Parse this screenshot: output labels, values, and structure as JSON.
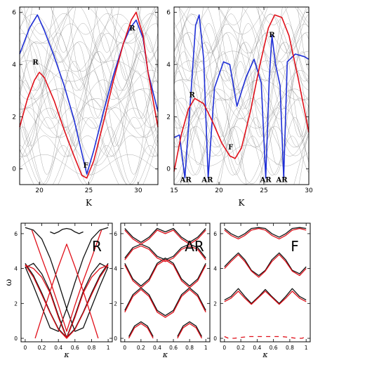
{
  "chart_data": [
    {
      "panel": "top-left",
      "type": "line",
      "xlabel": "K",
      "ylabel": "",
      "xlim": [
        18,
        32
      ],
      "ylim": [
        -0.6,
        6.2
      ],
      "xticks": [
        20,
        25,
        30
      ],
      "yticks": [
        0,
        2,
        4,
        6
      ],
      "background": "dense grey dispersion curves",
      "series": [
        {
          "color": "#1f2fd6",
          "x": [
            18,
            19,
            19.8,
            20.5,
            21.5,
            22.5,
            23.5,
            24.3,
            24.8,
            25.5,
            26.5,
            27.5,
            28.5,
            29.2,
            29.8,
            30.5,
            31,
            32
          ],
          "y": [
            4.4,
            5.4,
            5.9,
            5.3,
            4.3,
            3.2,
            1.9,
            0.6,
            -0.2,
            0.7,
            2.2,
            3.6,
            4.8,
            5.4,
            5.7,
            5.0,
            3.7,
            2.2
          ]
        },
        {
          "color": "#e0101a",
          "x": [
            18,
            18.8,
            19.5,
            20,
            20.5,
            21.5,
            22.5,
            23.5,
            24.3,
            24.8,
            25.5,
            26.5,
            27.5,
            28.5,
            29.3,
            29.8,
            30.5,
            31,
            32
          ],
          "y": [
            1.6,
            2.7,
            3.4,
            3.7,
            3.5,
            2.6,
            1.5,
            0.5,
            -0.25,
            -0.35,
            0.3,
            1.8,
            3.4,
            4.8,
            5.7,
            6.0,
            5.1,
            3.7,
            1.6
          ]
        }
      ],
      "labels": [
        {
          "text": "R",
          "x": 19.6,
          "y": 4.0
        },
        {
          "text": "R",
          "x": 29.4,
          "y": 5.3
        },
        {
          "text": "F",
          "x": 24.7,
          "y": 0.05
        }
      ]
    },
    {
      "panel": "top-right",
      "type": "line",
      "xlabel": "K",
      "ylabel": "",
      "xlim": [
        15,
        30
      ],
      "ylim": [
        -0.6,
        6.2
      ],
      "xticks": [
        15,
        20,
        25,
        30
      ],
      "yticks": [
        0,
        2,
        4,
        6
      ],
      "background": "dense grey dispersion curves",
      "series": [
        {
          "color": "#1f2fd6",
          "x": [
            15,
            15.6,
            16.2,
            16.9,
            17.4,
            17.8,
            18.3,
            18.8,
            19.5,
            20.5,
            21.2,
            22,
            23,
            23.9,
            24.7,
            25.2,
            25.6,
            25.9,
            26.3,
            26.8,
            27.2,
            27.6,
            28.5,
            29.5,
            30
          ],
          "y": [
            1.2,
            1.3,
            -0.35,
            3.0,
            5.5,
            5.9,
            4.2,
            -0.35,
            3.1,
            4.1,
            4.0,
            2.4,
            3.5,
            4.2,
            3.3,
            -0.35,
            3.5,
            5.1,
            4.0,
            3.2,
            -0.35,
            4.1,
            4.4,
            4.3,
            4.2
          ]
        },
        {
          "color": "#e0101a",
          "x": [
            15,
            15.8,
            16.6,
            17.3,
            18.3,
            19.3,
            20.3,
            21.2,
            21.8,
            22.5,
            23.5,
            24.5,
            25.5,
            26.2,
            27,
            27.8,
            28.8,
            30
          ],
          "y": [
            -0.1,
            1.3,
            2.3,
            2.7,
            2.5,
            1.8,
            1.0,
            0.5,
            0.4,
            0.8,
            2.2,
            3.9,
            5.4,
            5.9,
            5.8,
            5.1,
            3.5,
            1.4
          ]
        }
      ],
      "labels": [
        {
          "text": "R",
          "x": 17.0,
          "y": 2.75
        },
        {
          "text": "R",
          "x": 25.9,
          "y": 5.05
        },
        {
          "text": "F",
          "x": 21.3,
          "y": 0.75
        },
        {
          "text": "AR",
          "x": 16.3,
          "y": -0.5
        },
        {
          "text": "AR",
          "x": 18.7,
          "y": -0.5
        },
        {
          "text": "AR",
          "x": 25.2,
          "y": -0.5
        },
        {
          "text": "AR",
          "x": 27.0,
          "y": -0.5
        }
      ]
    },
    {
      "panel": "bottom-left",
      "type": "line",
      "xlabel": "κ",
      "ylabel": "ω",
      "xlim": [
        -0.05,
        1.05
      ],
      "ylim": [
        -0.2,
        6.6
      ],
      "xticks": [
        0,
        0.2,
        0.4,
        0.6,
        0.8,
        1
      ],
      "xtick_labels": [
        "0",
        "0.2",
        "0.4",
        "0.6",
        "0.8",
        "1"
      ],
      "yticks": [
        0,
        2,
        4,
        6
      ],
      "title": "R",
      "series": [
        {
          "color": "#111111",
          "x": [
            0,
            0.1,
            0.2,
            0.3,
            0.4,
            0.5,
            0.6,
            0.7,
            0.8,
            0.9,
            1
          ],
          "y": [
            4.3,
            3.6,
            2.6,
            1.5,
            0.55,
            0.05,
            0.55,
            1.5,
            2.6,
            3.6,
            4.3
          ]
        },
        {
          "color": "#111111",
          "x": [
            0,
            0.1,
            0.2,
            0.3,
            0.4,
            0.5,
            0.6,
            0.7,
            0.8,
            0.9,
            1
          ],
          "y": [
            4.05,
            4.3,
            3.7,
            2.7,
            1.3,
            0.05,
            1.3,
            2.7,
            3.7,
            4.3,
            4.05
          ]
        },
        {
          "color": "#111111",
          "x": [
            0,
            0.1,
            0.2,
            0.3,
            0.4,
            0.5,
            0.6,
            0.7,
            0.8,
            0.9,
            1
          ],
          "y": [
            4.1,
            3.0,
            1.8,
            0.6,
            0.4,
            1.7,
            3.2,
            4.6,
            5.7,
            6.2,
            6.35
          ]
        },
        {
          "color": "#111111",
          "x": [
            0,
            0.1,
            0.2,
            0.3,
            0.4,
            0.5,
            0.6,
            0.7,
            0.8,
            0.9,
            1
          ],
          "y": [
            6.35,
            6.2,
            5.7,
            4.6,
            3.2,
            1.7,
            0.4,
            0.6,
            1.8,
            3.0,
            4.1
          ]
        },
        {
          "color": "#111111",
          "x": [
            0.3,
            0.35,
            0.4,
            0.45,
            0.5,
            0.55,
            0.6,
            0.65,
            0.7
          ],
          "y": [
            6.1,
            6.0,
            6.1,
            6.25,
            6.3,
            6.25,
            6.1,
            6.0,
            6.1
          ]
        },
        {
          "color": "#e0101a",
          "x": [
            0,
            0.1,
            0.2,
            0.3,
            0.4,
            0.5,
            0.6,
            0.7,
            0.8,
            0.9,
            1
          ],
          "y": [
            4.2,
            3.5,
            2.5,
            1.45,
            0.5,
            0.0,
            0.5,
            1.45,
            2.5,
            3.5,
            4.2
          ]
        },
        {
          "color": "#e0101a",
          "x": [
            0,
            0.1,
            0.2,
            0.3,
            0.4,
            0.5,
            0.6,
            0.7,
            0.8,
            0.9,
            1
          ],
          "y": [
            4.2,
            4.0,
            3.5,
            2.6,
            1.2,
            0.0,
            1.2,
            2.6,
            3.5,
            4.0,
            4.2
          ]
        },
        {
          "color": "#e0101a",
          "x": [
            0.12,
            0.2,
            0.3,
            0.4,
            0.5,
            0.6,
            0.7,
            0.8,
            0.88
          ],
          "y": [
            0.0,
            1.2,
            2.7,
            4.1,
            5.4,
            4.1,
            2.7,
            1.2,
            0.0
          ]
        },
        {
          "color": "#e0101a",
          "x": [
            0.08,
            0.2,
            0.3,
            0.4,
            0.5,
            0.6,
            0.7,
            0.8,
            0.92
          ],
          "y": [
            6.2,
            4.6,
            3.3,
            1.9,
            0.4,
            1.9,
            3.3,
            4.6,
            6.2
          ]
        }
      ]
    },
    {
      "panel": "bottom-middle",
      "type": "line",
      "xlabel": "κ",
      "ylabel": "",
      "xlim": [
        -0.05,
        1.05
      ],
      "ylim": [
        -0.2,
        6.6
      ],
      "xticks": [
        0,
        0.2,
        0.4,
        0.6,
        0.8,
        1
      ],
      "xtick_labels": [
        "0",
        "0.2",
        "0.4",
        "0.6",
        "0.8",
        "1"
      ],
      "yticks": [
        0,
        2,
        4,
        6
      ],
      "title": "AR",
      "series": [
        {
          "color": "#111111",
          "x": [
            0.05,
            0.12,
            0.2,
            0.28,
            0.35
          ],
          "y": [
            0.1,
            0.7,
            0.95,
            0.7,
            0.1
          ]
        },
        {
          "color": "#111111",
          "x": [
            0.65,
            0.72,
            0.8,
            0.88,
            0.95
          ],
          "y": [
            0.1,
            0.7,
            0.95,
            0.7,
            0.1
          ]
        },
        {
          "color": "#111111",
          "x": [
            0,
            0.1,
            0.2,
            0.3,
            0.4,
            0.5,
            0.6,
            0.7,
            0.8,
            0.9,
            1
          ],
          "y": [
            1.6,
            2.5,
            2.9,
            2.5,
            1.6,
            1.3,
            1.6,
            2.5,
            2.9,
            2.5,
            1.6
          ]
        },
        {
          "color": "#111111",
          "x": [
            0,
            0.1,
            0.2,
            0.3,
            0.4,
            0.5,
            0.6,
            0.7,
            0.8,
            0.9,
            1
          ],
          "y": [
            4.3,
            3.4,
            3.0,
            3.4,
            4.3,
            4.6,
            4.3,
            3.4,
            3.0,
            3.4,
            4.3
          ]
        },
        {
          "color": "#111111",
          "x": [
            0,
            0.1,
            0.2,
            0.3,
            0.4,
            0.5,
            0.6,
            0.7,
            0.8,
            0.9,
            1
          ],
          "y": [
            4.6,
            5.2,
            5.4,
            5.2,
            4.7,
            4.5,
            4.7,
            5.2,
            5.4,
            5.2,
            4.6
          ]
        },
        {
          "color": "#111111",
          "x": [
            0,
            0.1,
            0.2,
            0.3,
            0.4,
            0.5,
            0.6,
            0.7,
            0.8,
            0.9,
            1
          ],
          "y": [
            6.3,
            5.8,
            5.5,
            5.8,
            6.3,
            6.1,
            6.3,
            5.8,
            5.5,
            5.8,
            6.3
          ]
        },
        {
          "color": "#e0101a",
          "x": [
            0.05,
            0.12,
            0.2,
            0.28,
            0.35
          ],
          "y": [
            0.0,
            0.6,
            0.85,
            0.6,
            0.0
          ]
        },
        {
          "color": "#e0101a",
          "x": [
            0.65,
            0.72,
            0.8,
            0.88,
            0.95
          ],
          "y": [
            0.0,
            0.6,
            0.85,
            0.6,
            0.0
          ]
        },
        {
          "color": "#e0101a",
          "x": [
            0,
            0.1,
            0.2,
            0.3,
            0.4,
            0.5,
            0.6,
            0.7,
            0.8,
            0.9,
            1
          ],
          "y": [
            1.5,
            2.4,
            2.8,
            2.4,
            1.5,
            1.2,
            1.5,
            2.4,
            2.8,
            2.4,
            1.5
          ]
        },
        {
          "color": "#e0101a",
          "x": [
            0,
            0.1,
            0.2,
            0.3,
            0.4,
            0.5,
            0.6,
            0.7,
            0.8,
            0.9,
            1
          ],
          "y": [
            4.2,
            3.3,
            2.9,
            3.3,
            4.2,
            4.5,
            4.2,
            3.3,
            2.9,
            3.3,
            4.2
          ]
        },
        {
          "color": "#e0101a",
          "x": [
            0,
            0.1,
            0.2,
            0.3,
            0.4,
            0.5,
            0.6,
            0.7,
            0.8,
            0.9,
            1
          ],
          "y": [
            4.5,
            5.1,
            5.3,
            5.1,
            4.6,
            4.4,
            4.6,
            5.1,
            5.3,
            5.1,
            4.5
          ]
        },
        {
          "color": "#e0101a",
          "x": [
            0,
            0.1,
            0.2,
            0.3,
            0.4,
            0.5,
            0.6,
            0.7,
            0.8,
            0.9,
            1
          ],
          "y": [
            6.2,
            5.7,
            5.4,
            5.7,
            6.2,
            6.0,
            6.2,
            5.7,
            5.4,
            5.7,
            6.2
          ]
        }
      ]
    },
    {
      "panel": "bottom-right",
      "type": "line",
      "xlabel": "κ",
      "ylabel": "",
      "xlim": [
        -0.05,
        1.05
      ],
      "ylim": [
        -0.2,
        6.6
      ],
      "xticks": [
        0,
        0.2,
        0.4,
        0.6,
        0.8,
        1
      ],
      "xtick_labels": [
        "0",
        "0.2",
        "0.4",
        "0.6",
        "0.8",
        "1"
      ],
      "yticks": [
        0,
        2,
        4,
        6
      ],
      "title": "F",
      "series": [
        {
          "color": "#111111",
          "x": [
            0,
            0.08,
            0.17,
            0.25,
            0.33,
            0.42,
            0.5,
            0.58,
            0.67,
            0.75,
            0.83,
            0.92,
            1
          ],
          "y": [
            2.2,
            2.4,
            2.85,
            2.4,
            2.0,
            2.4,
            2.8,
            2.4,
            2.0,
            2.4,
            2.85,
            2.4,
            2.2
          ]
        },
        {
          "color": "#111111",
          "x": [
            0,
            0.08,
            0.17,
            0.25,
            0.33,
            0.42,
            0.5,
            0.58,
            0.67,
            0.75,
            0.83,
            0.92,
            1
          ],
          "y": [
            4.1,
            4.5,
            4.9,
            4.5,
            3.9,
            3.6,
            3.9,
            4.5,
            4.9,
            4.5,
            3.9,
            3.7,
            4.1
          ]
        },
        {
          "color": "#111111",
          "x": [
            0,
            0.08,
            0.17,
            0.25,
            0.33,
            0.42,
            0.5,
            0.58,
            0.67,
            0.75,
            0.83,
            0.92,
            1
          ],
          "y": [
            6.3,
            6.0,
            5.8,
            6.0,
            6.3,
            6.35,
            6.3,
            6.0,
            5.8,
            6.0,
            6.3,
            6.35,
            6.3
          ]
        },
        {
          "color": "#e0101a",
          "x": [
            0,
            0.08,
            0.17,
            0.25,
            0.33,
            0.42,
            0.5,
            0.58,
            0.67,
            0.75,
            0.83,
            0.92,
            1
          ],
          "y": [
            2.1,
            2.3,
            2.7,
            2.3,
            1.95,
            2.35,
            2.7,
            2.35,
            1.95,
            2.3,
            2.7,
            2.3,
            2.1
          ]
        },
        {
          "color": "#e0101a",
          "x": [
            0,
            0.08,
            0.17,
            0.25,
            0.33,
            0.42,
            0.5,
            0.58,
            0.67,
            0.75,
            0.83,
            0.92,
            1
          ],
          "y": [
            4.0,
            4.4,
            4.8,
            4.4,
            3.85,
            3.5,
            3.85,
            4.4,
            4.8,
            4.4,
            3.85,
            3.6,
            4.0
          ]
        },
        {
          "color": "#e0101a",
          "x": [
            0,
            0.08,
            0.17,
            0.25,
            0.33,
            0.42,
            0.5,
            0.58,
            0.67,
            0.75,
            0.83,
            0.92,
            1
          ],
          "y": [
            6.2,
            5.9,
            5.7,
            5.9,
            6.2,
            6.3,
            6.2,
            5.9,
            5.7,
            5.9,
            6.2,
            6.3,
            6.2
          ]
        },
        {
          "color": "#e0101a",
          "dashed": true,
          "x": [
            0,
            0.05,
            0.12,
            0.2,
            0.3,
            0.4,
            0.5,
            0.6,
            0.7,
            0.8,
            0.88,
            0.95,
            1
          ],
          "y": [
            0.1,
            0.0,
            0.0,
            0.05,
            0.1,
            0.1,
            0.1,
            0.1,
            0.1,
            0.05,
            0.0,
            0.0,
            0.1
          ]
        }
      ]
    }
  ]
}
